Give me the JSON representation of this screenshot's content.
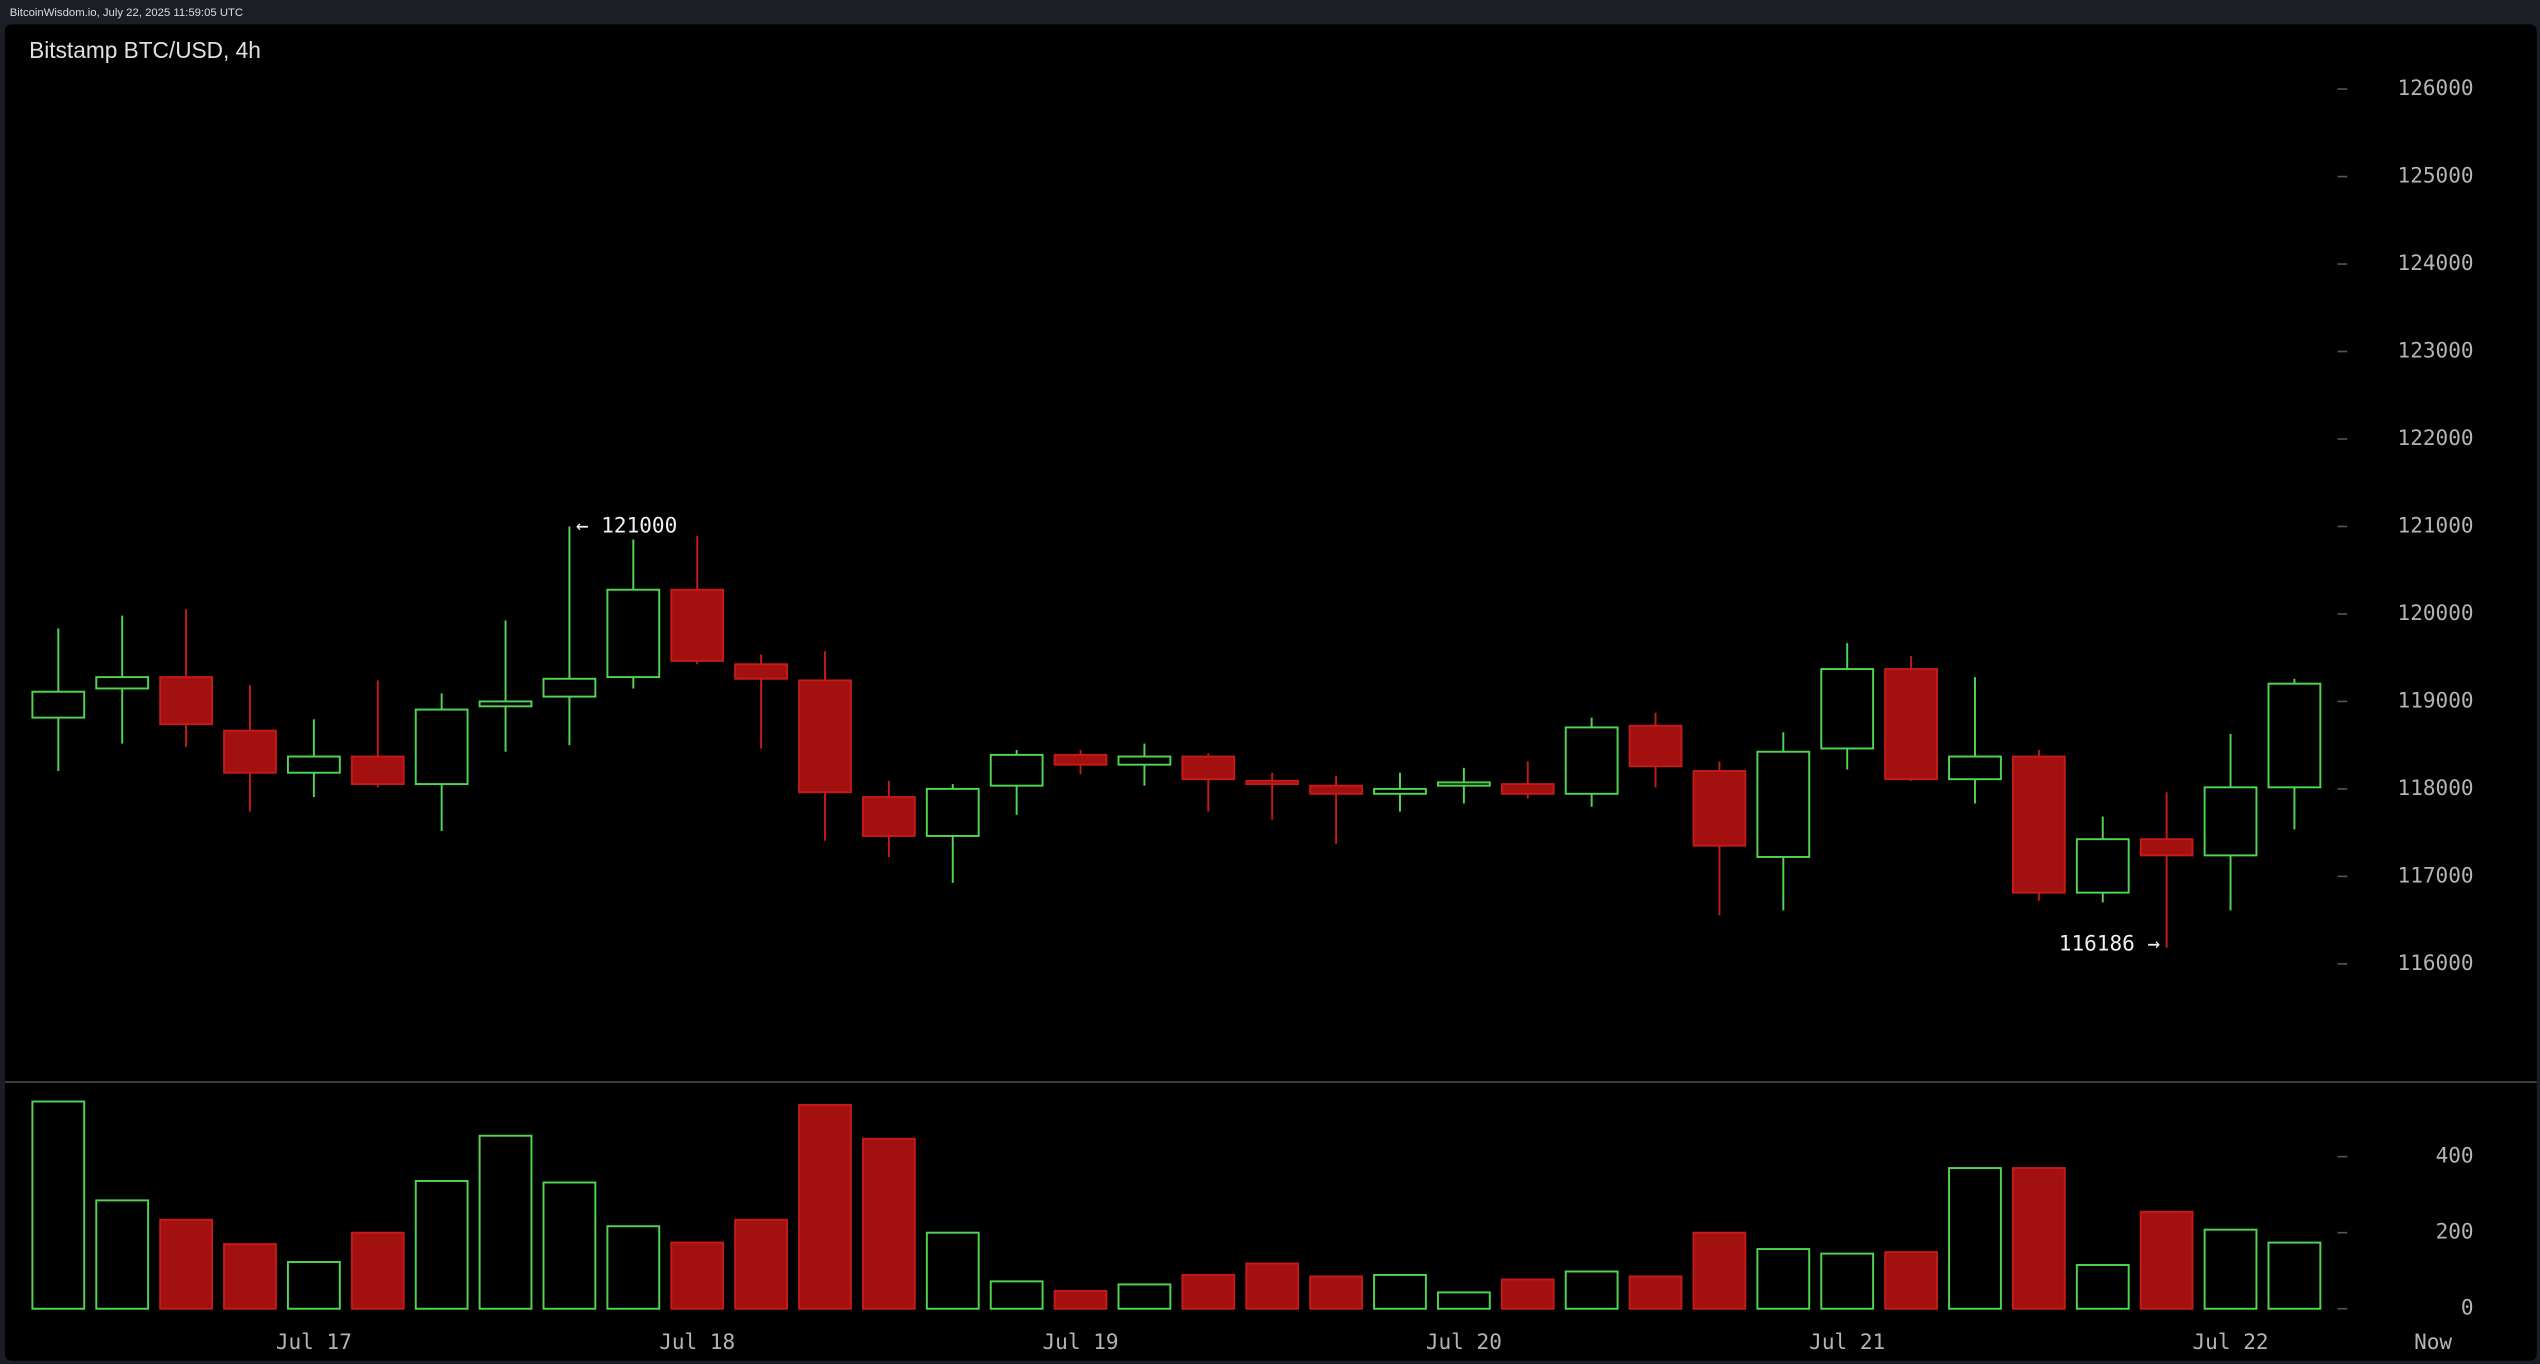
{
  "header": {
    "source": "BitcoinWisdom.io, July 22, 2025 11:59:05 UTC"
  },
  "chart_data": [
    {
      "type": "candlestick",
      "title": "Bitstamp BTC/USD, 4h",
      "categories": [
        null,
        null,
        null,
        null,
        "Jul 17",
        null,
        null,
        null,
        null,
        null,
        "Jul 18",
        null,
        null,
        null,
        null,
        null,
        "Jul 19",
        null,
        null,
        null,
        null,
        null,
        "Jul 20",
        null,
        null,
        null,
        null,
        null,
        "Jul 21",
        null,
        null,
        null,
        null,
        null,
        "Jul 22",
        null
      ],
      "open": [
        118815,
        119148,
        119278,
        118666,
        118185,
        118370,
        118055,
        118944,
        119055,
        119278,
        120277,
        119425,
        119240,
        117907,
        117462,
        118037,
        118389,
        118277,
        118370,
        118092,
        118037,
        117944,
        118037,
        118055,
        117944,
        118722,
        118204,
        117222,
        118462,
        119370,
        118111,
        118370,
        116814,
        117425,
        117240,
        118018
      ],
      "high": [
        119833,
        119981,
        120055,
        119185,
        118796,
        119240,
        119092,
        119925,
        121000,
        120851,
        120889,
        119537,
        119574,
        118092,
        118055,
        118444,
        118444,
        118518,
        118407,
        118185,
        118148,
        118185,
        118241,
        118315,
        118815,
        118870,
        118315,
        118648,
        119666,
        119518,
        119278,
        118444,
        117685,
        117962,
        118629,
        119259
      ],
      "low": [
        118204,
        118518,
        118481,
        117740,
        117907,
        118018,
        117518,
        118425,
        118500,
        119148,
        119425,
        118462,
        117407,
        117222,
        116925,
        117703,
        118166,
        118037,
        117740,
        117648,
        117370,
        117740,
        117833,
        117888,
        117796,
        118018,
        116555,
        116611,
        118222,
        118092,
        117833,
        116722,
        116703,
        116186,
        116611,
        117537
      ],
      "close": [
        119111,
        119278,
        118740,
        118185,
        118370,
        118055,
        118907,
        119000,
        119259,
        120277,
        119463,
        119259,
        117962,
        117462,
        118000,
        118389,
        118277,
        118370,
        118111,
        118055,
        117944,
        118000,
        118074,
        117944,
        118703,
        118259,
        117351,
        118425,
        119370,
        118111,
        118370,
        116814,
        117425,
        117240,
        118018,
        119203
      ],
      "up_color": "#52d452",
      "down_color": "#a31010",
      "high_label": "← 121000",
      "low_label": "116186 →",
      "ylim": [
        114648,
        126685
      ],
      "yticks": [
        116000,
        117000,
        118000,
        119000,
        120000,
        121000,
        122000,
        123000,
        124000,
        125000,
        126000
      ]
    },
    {
      "type": "volume",
      "values": [
        545,
        285,
        234,
        170,
        123,
        200,
        336,
        455,
        332,
        217,
        174,
        234,
        536,
        447,
        200,
        72,
        47,
        64,
        89,
        119,
        85,
        89,
        43,
        77,
        98,
        85,
        200,
        157,
        145,
        149,
        370,
        370,
        115,
        255,
        208,
        174
      ],
      "ylim": [
        -43,
        596
      ],
      "yticks": [
        0,
        200,
        400
      ],
      "now_label": "Now"
    }
  ]
}
